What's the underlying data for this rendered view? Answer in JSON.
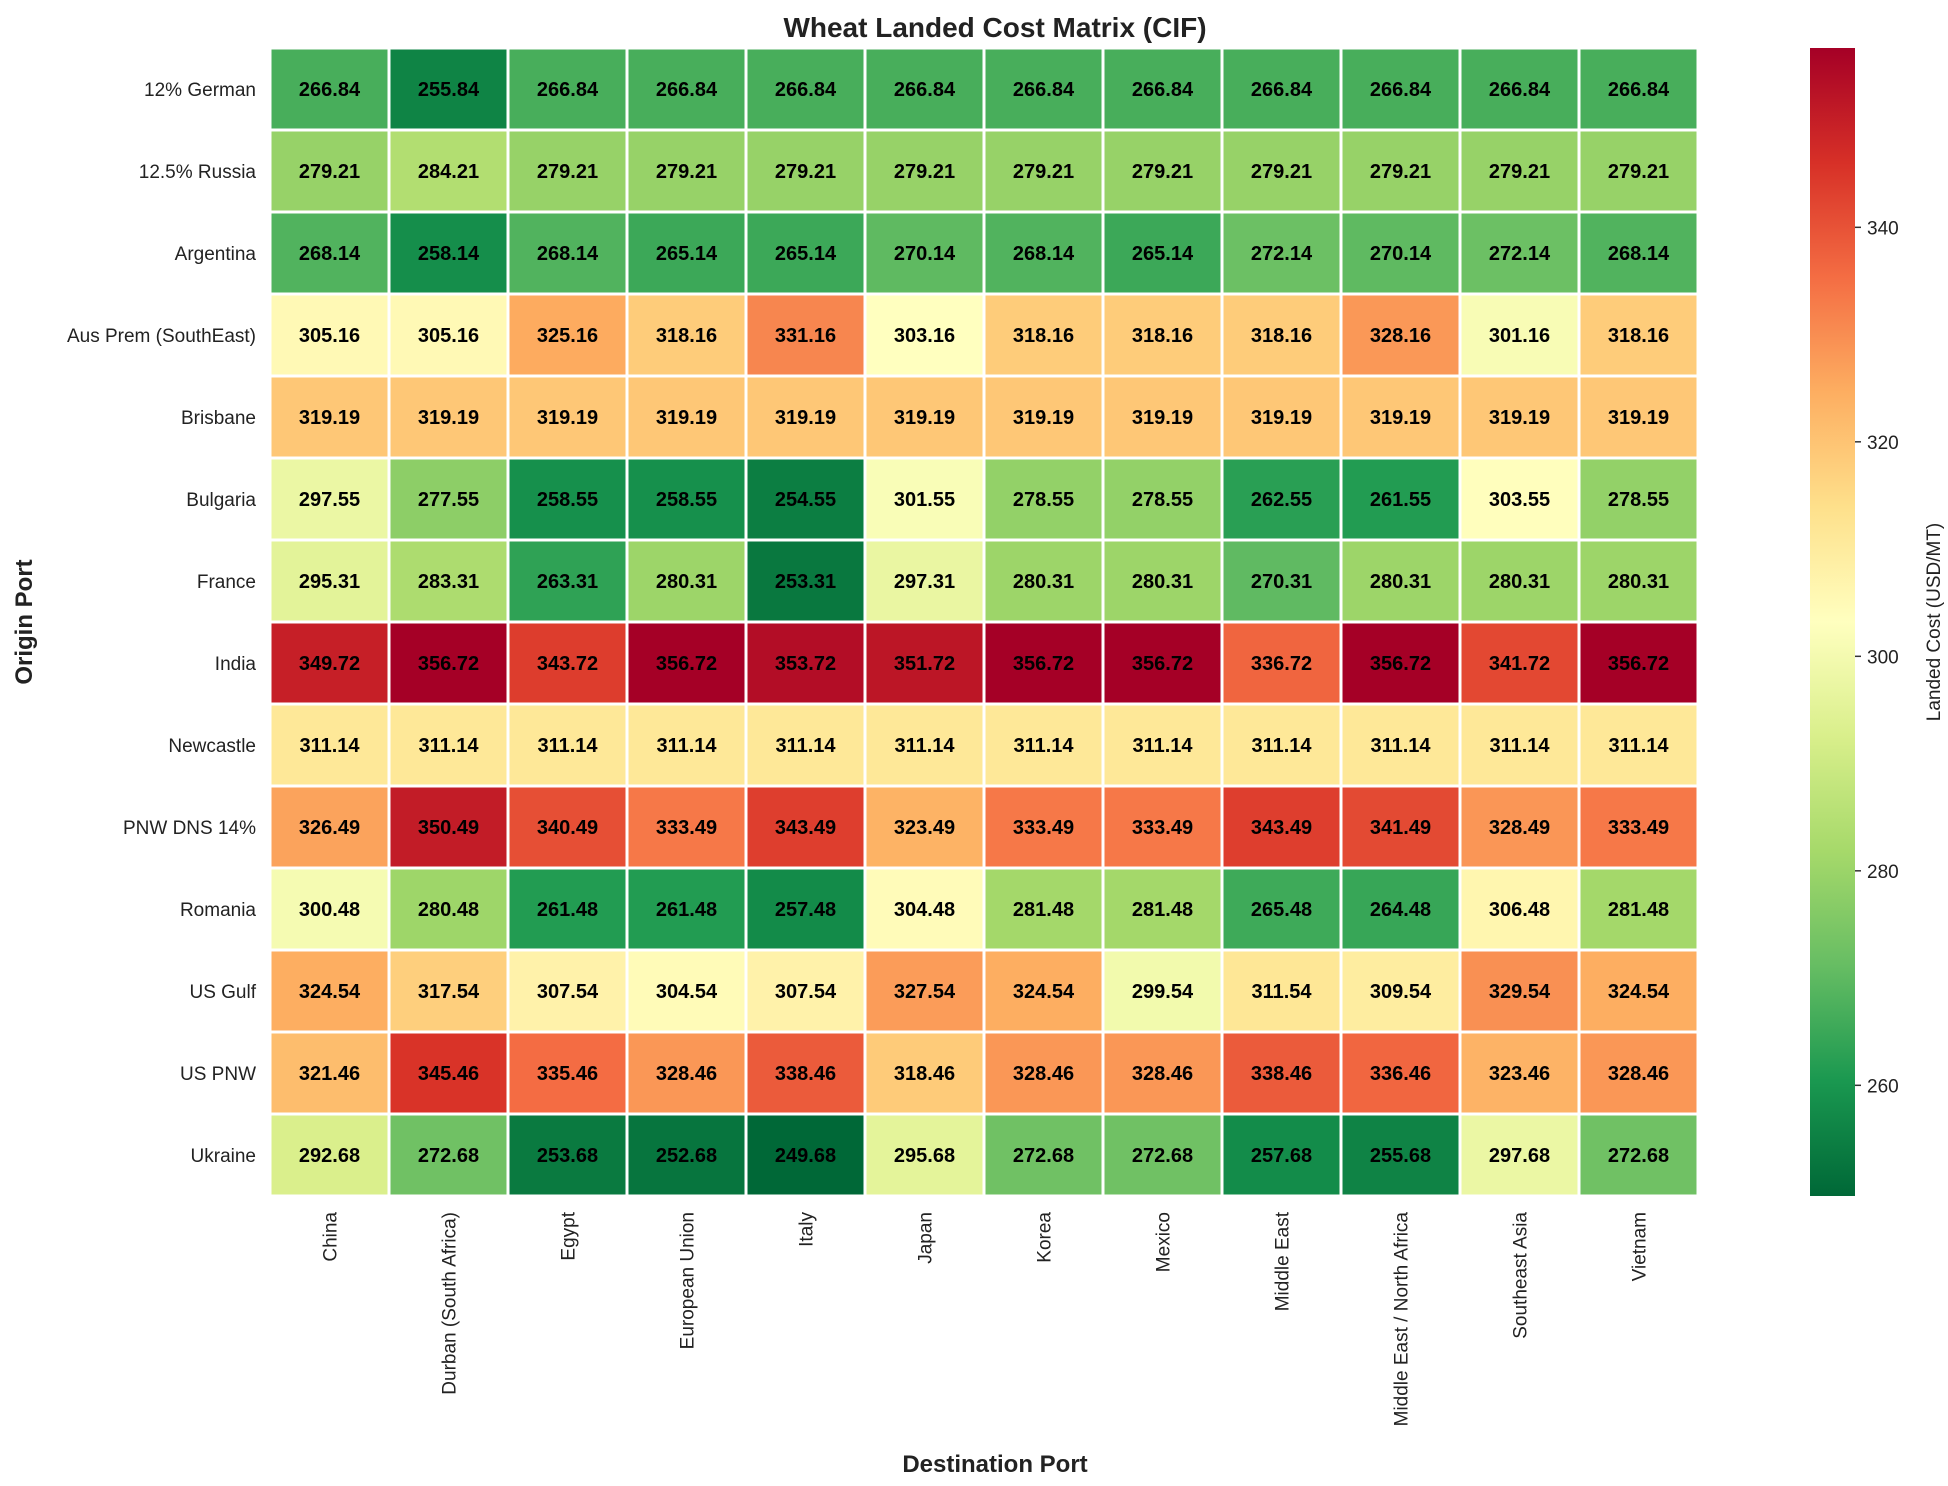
{
  "chart_data": {
    "type": "heatmap",
    "title": "Wheat Landed Cost Matrix (CIF)",
    "xlabel": "Destination Port",
    "ylabel": "Origin Port",
    "colorbar_label": "Landed Cost (USD/MT)",
    "colormap": "RdYlGn_r",
    "vmin": 249.68,
    "vmax": 356.72,
    "colorbar_ticks": [
      260,
      280,
      300,
      320,
      340
    ],
    "x_categories": [
      "China",
      "Durban (South Africa)",
      "Egypt",
      "European Union",
      "Italy",
      "Japan",
      "Korea",
      "Mexico",
      "Middle East",
      "Middle East / North Africa",
      "Southeast Asia",
      "Vietnam"
    ],
    "y_categories": [
      "12% German",
      "12.5% Russia",
      "Argentina",
      "Aus Prem (SouthEast)",
      "Brisbane",
      "Bulgaria",
      "France",
      "India",
      "Newcastle",
      "PNW DNS 14%",
      "Romania",
      "US Gulf",
      "US PNW",
      "Ukraine"
    ],
    "values": [
      [
        266.84,
        255.84,
        266.84,
        266.84,
        266.84,
        266.84,
        266.84,
        266.84,
        266.84,
        266.84,
        266.84,
        266.84
      ],
      [
        279.21,
        284.21,
        279.21,
        279.21,
        279.21,
        279.21,
        279.21,
        279.21,
        279.21,
        279.21,
        279.21,
        279.21
      ],
      [
        268.14,
        258.14,
        268.14,
        265.14,
        265.14,
        270.14,
        268.14,
        265.14,
        272.14,
        270.14,
        272.14,
        268.14
      ],
      [
        305.16,
        305.16,
        325.16,
        318.16,
        331.16,
        303.16,
        318.16,
        318.16,
        318.16,
        328.16,
        301.16,
        318.16
      ],
      [
        319.19,
        319.19,
        319.19,
        319.19,
        319.19,
        319.19,
        319.19,
        319.19,
        319.19,
        319.19,
        319.19,
        319.19
      ],
      [
        297.55,
        277.55,
        258.55,
        258.55,
        254.55,
        301.55,
        278.55,
        278.55,
        262.55,
        261.55,
        303.55,
        278.55
      ],
      [
        295.31,
        283.31,
        263.31,
        280.31,
        253.31,
        297.31,
        280.31,
        280.31,
        270.31,
        280.31,
        280.31,
        280.31
      ],
      [
        349.72,
        356.72,
        343.72,
        356.72,
        353.72,
        351.72,
        356.72,
        356.72,
        336.72,
        356.72,
        341.72,
        356.72
      ],
      [
        311.14,
        311.14,
        311.14,
        311.14,
        311.14,
        311.14,
        311.14,
        311.14,
        311.14,
        311.14,
        311.14,
        311.14
      ],
      [
        326.49,
        350.49,
        340.49,
        333.49,
        343.49,
        323.49,
        333.49,
        333.49,
        343.49,
        341.49,
        328.49,
        333.49
      ],
      [
        300.48,
        280.48,
        261.48,
        261.48,
        257.48,
        304.48,
        281.48,
        281.48,
        265.48,
        264.48,
        306.48,
        281.48
      ],
      [
        324.54,
        317.54,
        307.54,
        304.54,
        307.54,
        327.54,
        324.54,
        299.54,
        311.54,
        309.54,
        329.54,
        324.54
      ],
      [
        321.46,
        345.46,
        335.46,
        328.46,
        338.46,
        318.46,
        328.46,
        328.46,
        338.46,
        336.46,
        323.46,
        328.46
      ],
      [
        292.68,
        272.68,
        253.68,
        252.68,
        249.68,
        295.68,
        272.68,
        272.68,
        257.68,
        255.68,
        297.68,
        272.68
      ]
    ],
    "value_labels_format": "2 decimals",
    "grid": false
  }
}
